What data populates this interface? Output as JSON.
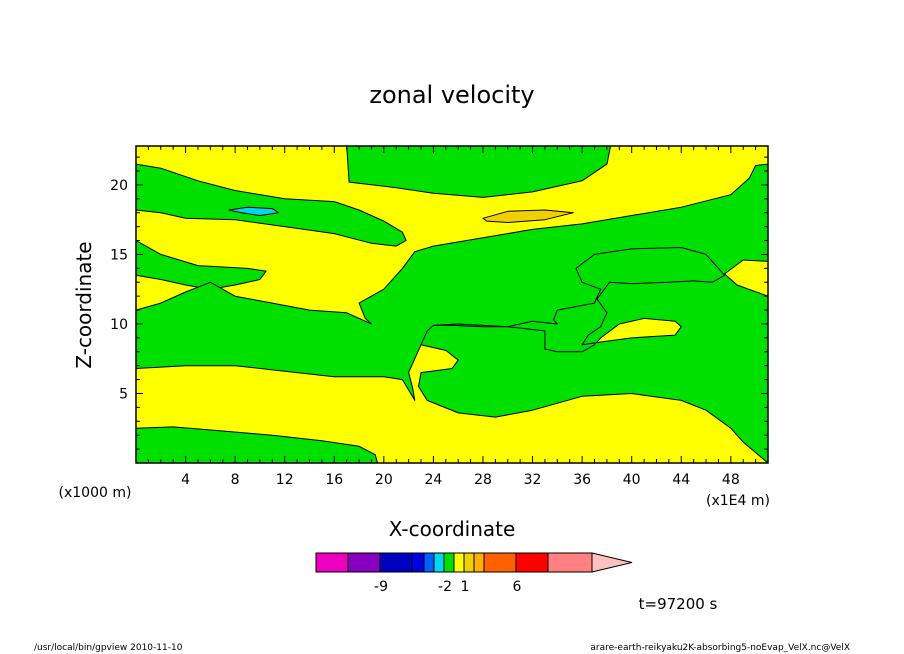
{
  "chart_data": {
    "type": "contour",
    "title": "zonal velocity",
    "xlabel": "X-coordinate",
    "ylabel": "Z-coordinate",
    "x_unit_label": "(x1000 m)",
    "x_scale_label": "(x1E4 m)",
    "xlim": [
      0,
      51
    ],
    "ylim": [
      0,
      22.8
    ],
    "x_ticks": [
      4,
      8,
      12,
      16,
      20,
      24,
      28,
      32,
      36,
      40,
      44,
      48
    ],
    "y_ticks": [
      5,
      10,
      15,
      20
    ],
    "colors": {
      "fill_0_1": "#ffff00",
      "fill_neg2_0": "#00e000",
      "fill_neg4_neg2": "#00d8f0",
      "fill_1_2": "#f0d000"
    },
    "regions": [
      {
        "level": "-2..0",
        "color": "#00e000",
        "points": [
          [
            0,
            21.5
          ],
          [
            2,
            21.2
          ],
          [
            5,
            20.3
          ],
          [
            8,
            19.6
          ],
          [
            12,
            19.0
          ],
          [
            16,
            18.8
          ],
          [
            18,
            18.2
          ],
          [
            20,
            17.4
          ],
          [
            21.5,
            16.6
          ],
          [
            21.8,
            16.0
          ],
          [
            21,
            15.6
          ],
          [
            19,
            15.8
          ],
          [
            16,
            16.5
          ],
          [
            12,
            17.0
          ],
          [
            8,
            17.5
          ],
          [
            4,
            17.6
          ],
          [
            2,
            18.0
          ],
          [
            0,
            18.2
          ]
        ]
      },
      {
        "level": "-2..0",
        "color": "#00e000",
        "points": [
          [
            17,
            22.8
          ],
          [
            38.3,
            22.8
          ],
          [
            38,
            21.5
          ],
          [
            36,
            20.3
          ],
          [
            32,
            19.5
          ],
          [
            28,
            19.1
          ],
          [
            24,
            19.4
          ],
          [
            21,
            19.8
          ],
          [
            17.2,
            20.2
          ]
        ]
      },
      {
        "level": "-2..0",
        "color": "#00e000",
        "points": [
          [
            0,
            16.0
          ],
          [
            2,
            15.0
          ],
          [
            5,
            14.2
          ],
          [
            9,
            14.0
          ],
          [
            10.5,
            13.8
          ],
          [
            10,
            13.2
          ],
          [
            8,
            12.8
          ],
          [
            6,
            12.5
          ],
          [
            4,
            12.8
          ],
          [
            2,
            13.2
          ],
          [
            0,
            13.5
          ]
        ]
      },
      {
        "level": "-2..0",
        "color": "#00e000",
        "points": [
          [
            0,
            11.0
          ],
          [
            2,
            11.5
          ],
          [
            4,
            12.3
          ],
          [
            6,
            13.0
          ],
          [
            8,
            12.0
          ],
          [
            11,
            11.5
          ],
          [
            14,
            11.0
          ],
          [
            17,
            10.8
          ],
          [
            19,
            10.0
          ],
          [
            18.5,
            10.4
          ],
          [
            18,
            11.5
          ],
          [
            20,
            12.5
          ],
          [
            21.5,
            14.0
          ],
          [
            22.5,
            15.2
          ],
          [
            24,
            15.6
          ],
          [
            28,
            16.2
          ],
          [
            32,
            16.8
          ],
          [
            36,
            17.2
          ],
          [
            40,
            17.8
          ],
          [
            44,
            18.4
          ],
          [
            48,
            19.3
          ],
          [
            49.5,
            20.5
          ],
          [
            50,
            21.4
          ],
          [
            51,
            21.5
          ],
          [
            51,
            14.5
          ],
          [
            49,
            14.6
          ],
          [
            47.5,
            13.6
          ],
          [
            48.5,
            12.8
          ],
          [
            51,
            12.0
          ],
          [
            51,
            0
          ],
          [
            49,
            1.5
          ],
          [
            48,
            2.5
          ],
          [
            46,
            3.8
          ],
          [
            44,
            4.5
          ],
          [
            40,
            5.0
          ],
          [
            36,
            4.8
          ],
          [
            32,
            3.8
          ],
          [
            29,
            3.3
          ],
          [
            26,
            3.6
          ],
          [
            23.5,
            4.5
          ],
          [
            22.8,
            5.5
          ],
          [
            23,
            6.5
          ],
          [
            25.5,
            6.8
          ],
          [
            26,
            7.4
          ],
          [
            25,
            8.1
          ],
          [
            24,
            8.3
          ],
          [
            23,
            8.5
          ],
          [
            23.5,
            9.5
          ],
          [
            24,
            9.9
          ],
          [
            26,
            10.0
          ],
          [
            30,
            9.8
          ],
          [
            32,
            10.2
          ],
          [
            34,
            10.0
          ],
          [
            33.7,
            10.3
          ],
          [
            34,
            11.0
          ],
          [
            37,
            11.5
          ],
          [
            37.5,
            12.5
          ],
          [
            36,
            13.0
          ],
          [
            35.5,
            14.0
          ],
          [
            37,
            15.0
          ],
          [
            40,
            15.4
          ],
          [
            44,
            15.5
          ],
          [
            46,
            15.0
          ],
          [
            47.5,
            13.5
          ],
          [
            46.5,
            13.0
          ],
          [
            45,
            13.1
          ],
          [
            43,
            13.0
          ],
          [
            40,
            12.9
          ],
          [
            38.2,
            13.0
          ],
          [
            37.8,
            12.5
          ],
          [
            37.2,
            11.8
          ],
          [
            38,
            10.8
          ],
          [
            37.5,
            9.8
          ],
          [
            36.5,
            9.2
          ],
          [
            36,
            8.5
          ],
          [
            37.5,
            8.7
          ],
          [
            40,
            9.0
          ],
          [
            43.5,
            9.2
          ],
          [
            44,
            9.8
          ],
          [
            43.5,
            10.2
          ],
          [
            41,
            10.4
          ],
          [
            39,
            10.0
          ],
          [
            37.5,
            9.0
          ],
          [
            37,
            8.5
          ],
          [
            36,
            8.0
          ],
          [
            34,
            8.0
          ],
          [
            33,
            8.2
          ],
          [
            33,
            9.5
          ],
          [
            30,
            9.8
          ],
          [
            28,
            9.8
          ],
          [
            25.5,
            9.9
          ],
          [
            24,
            9.9
          ],
          [
            23.5,
            9.5
          ],
          [
            23,
            8.5
          ],
          [
            22,
            6.5
          ],
          [
            22.3,
            5.5
          ],
          [
            22.5,
            4.5
          ],
          [
            21.5,
            6.0
          ],
          [
            20,
            6.2
          ],
          [
            16,
            6.2
          ],
          [
            12,
            6.6
          ],
          [
            8,
            7.0
          ],
          [
            4,
            7.0
          ],
          [
            0,
            6.8
          ]
        ]
      },
      {
        "level": "-2..0",
        "color": "#00e000",
        "points": [
          [
            0,
            2.5
          ],
          [
            3,
            2.6
          ],
          [
            7,
            2.3
          ],
          [
            11,
            2.0
          ],
          [
            15,
            1.6
          ],
          [
            18,
            1.2
          ],
          [
            19.3,
            0.6
          ],
          [
            19.5,
            0
          ],
          [
            0,
            0
          ]
        ]
      },
      {
        "level": "-4..-2",
        "color": "#00d8f0",
        "points": [
          [
            7.5,
            18.2
          ],
          [
            9,
            18.4
          ],
          [
            11,
            18.3
          ],
          [
            11.5,
            18.0
          ],
          [
            10,
            17.8
          ],
          [
            8.5,
            18.0
          ]
        ]
      },
      {
        "level": "1..2",
        "color": "#f0d000",
        "points": [
          [
            28,
            17.6
          ],
          [
            30,
            18.1
          ],
          [
            33,
            18.2
          ],
          [
            35.3,
            18.0
          ],
          [
            33,
            17.5
          ],
          [
            30,
            17.3
          ],
          [
            28.3,
            17.4
          ]
        ]
      }
    ],
    "colorbar": {
      "colors": [
        "#ee00c0",
        "#8800c0",
        "#0000c0",
        "#0000e0",
        "#0060ff",
        "#00d8f0",
        "#00e000",
        "#ffff00",
        "#f0d000",
        "#ffb000",
        "#ff6000",
        "#ff0000",
        "#ff8080",
        "#ffc0c0"
      ],
      "labels": [
        {
          "text": "-9",
          "at": 2
        },
        {
          "text": "-2",
          "at": 6
        },
        {
          "text": "1",
          "at": 8
        },
        {
          "text": "6",
          "at": 11
        }
      ]
    }
  },
  "time_label": "t=97200 s",
  "footer_left": "/usr/local/bin/gpview  2010-11-10",
  "footer_right": "arare-earth-reikyaku2K-absorbing5-noEvap_VelX.nc@VelX"
}
